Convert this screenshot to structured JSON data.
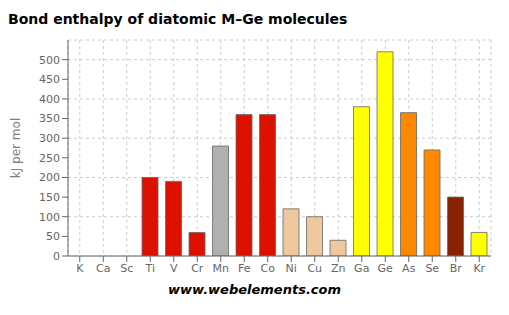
{
  "chart_data": {
    "type": "bar",
    "title": "Bond enthalpy of diatomic M–Ge molecules",
    "ylabel": "kJ per mol",
    "annotations": [
      "www.webelements.com"
    ],
    "categories": [
      "K",
      "Ca",
      "Sc",
      "Ti",
      "V",
      "Cr",
      "Mn",
      "Fe",
      "Co",
      "Ni",
      "Cu",
      "Zn",
      "Ga",
      "Ge",
      "As",
      "Se",
      "Br",
      "Kr"
    ],
    "values": [
      0,
      0,
      0,
      200,
      190,
      60,
      280,
      360,
      360,
      120,
      100,
      40,
      380,
      520,
      365,
      270,
      150,
      60
    ],
    "colors": [
      "#ffffff",
      "#cccccc",
      "#888888",
      "#dd1100",
      "#dd1100",
      "#dd1100",
      "#b0b0b0",
      "#dd1100",
      "#dd1100",
      "#f0c8a0",
      "#f0c8a0",
      "#f0c8a0",
      "#ffff00",
      "#ffff00",
      "#ff8800",
      "#ff8800",
      "#882200",
      "#ffff00"
    ],
    "ylim": [
      0,
      550
    ],
    "yticks": [
      0,
      50,
      100,
      150,
      200,
      250,
      300,
      350,
      400,
      450,
      500
    ],
    "grid": true
  }
}
